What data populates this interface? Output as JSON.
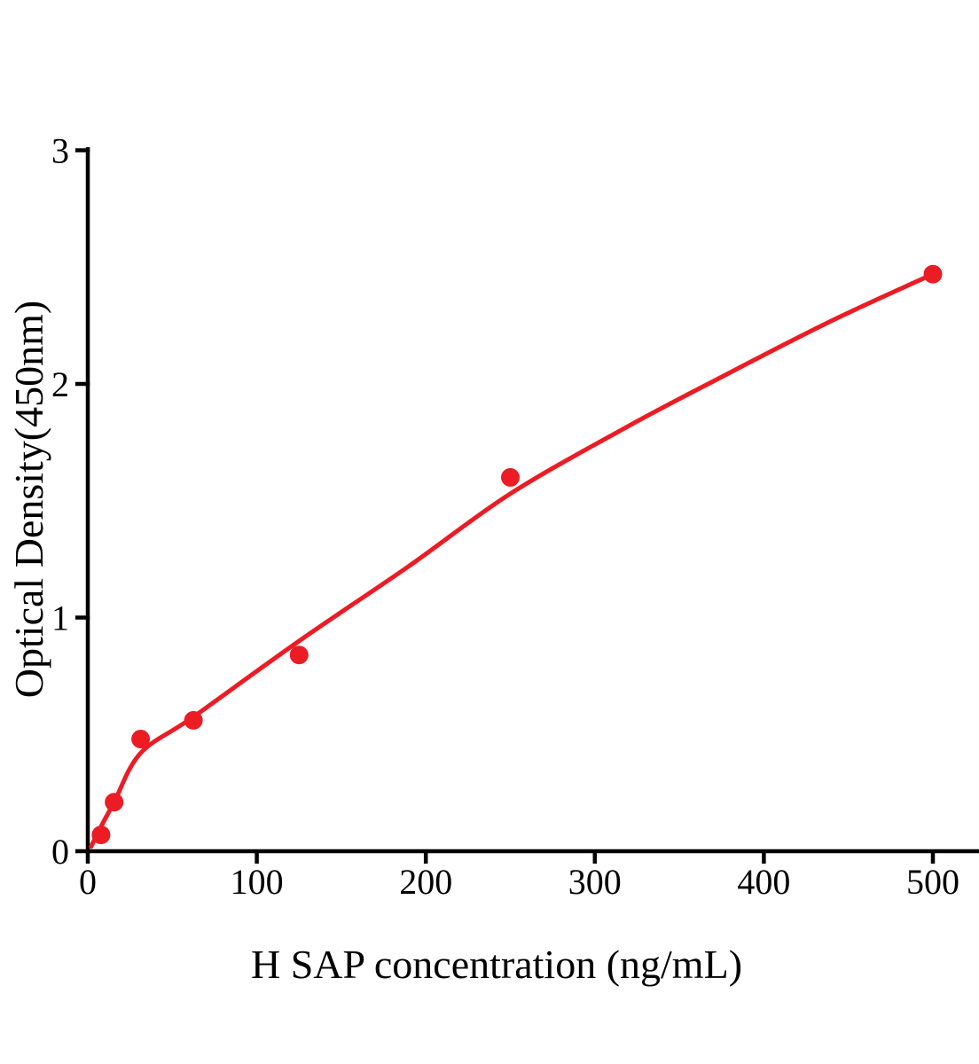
{
  "figure": {
    "background": "#ffffff",
    "axis_color": "#000000"
  },
  "chart_data": {
    "type": "scatter",
    "title": "",
    "xlabel": "H SAP concentration (ng/mL)",
    "ylabel": "Optical Density(450nm)",
    "x_ticks": [
      0,
      100,
      200,
      300,
      400,
      500
    ],
    "y_ticks": [
      0,
      1,
      2,
      3
    ],
    "xlim": [
      0,
      527
    ],
    "ylim": [
      0,
      3
    ],
    "grid": false,
    "legend": false,
    "accent_color": "#EC1C24",
    "series": [
      {
        "name": "standard-points",
        "type": "scatter",
        "color": "#EC1C24",
        "x": [
          7.8,
          15.6,
          31.25,
          62.5,
          125,
          250,
          500
        ],
        "y": [
          0.07,
          0.21,
          0.48,
          0.56,
          0.84,
          1.6,
          2.47
        ]
      },
      {
        "name": "fitted-curve",
        "type": "line",
        "color": "#EC1C24",
        "x": [
          2,
          7.8,
          15.6,
          31.25,
          62.5,
          125,
          190,
          250,
          320,
          375,
          440,
          500
        ],
        "y": [
          0.02,
          0.105,
          0.21,
          0.42,
          0.575,
          0.9,
          1.22,
          1.53,
          1.82,
          2.03,
          2.27,
          2.47
        ]
      }
    ]
  }
}
